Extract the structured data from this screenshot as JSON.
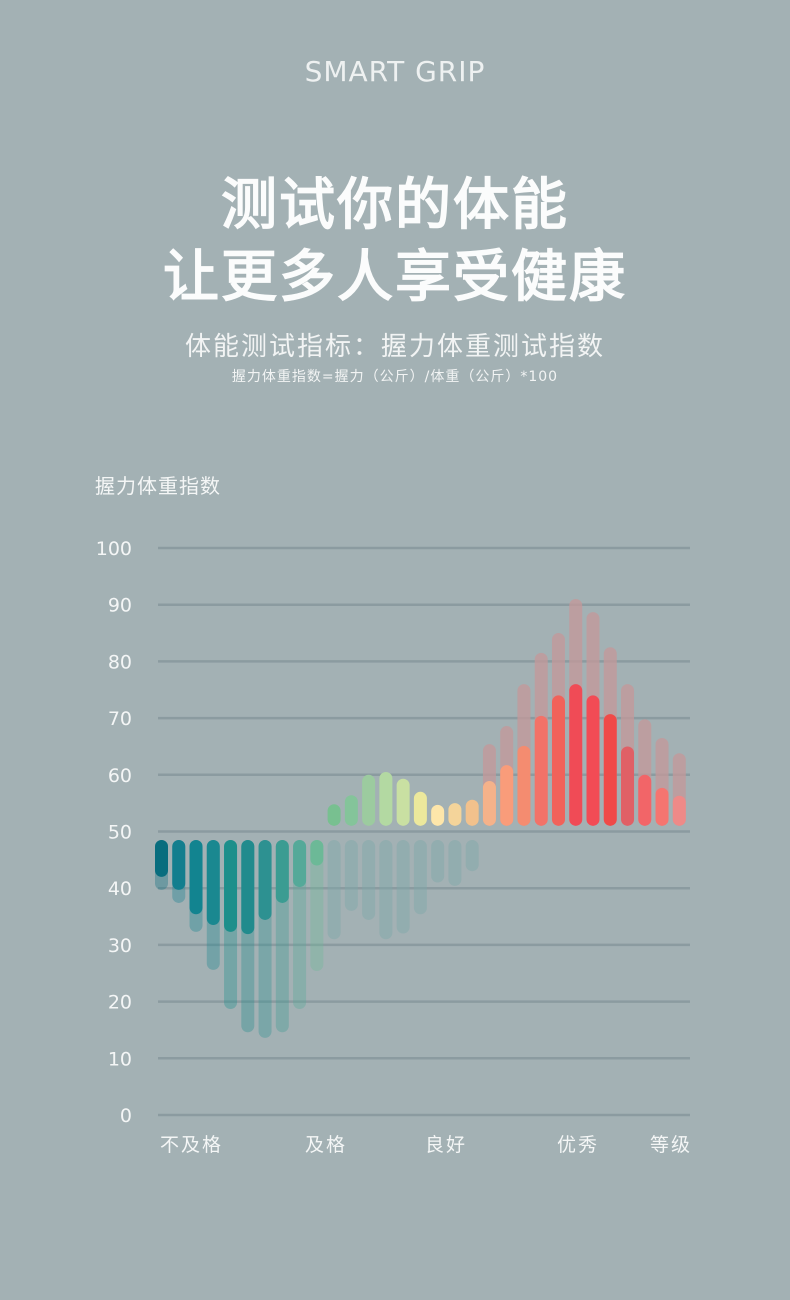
{
  "brand": "SMART GRIP",
  "headline": [
    "测试你的体能",
    "让更多人享受健康"
  ],
  "subtitle": "体能测试指标：握力体重测试指数",
  "formula": "握力体重指数=握力（公斤）/体重（公斤）*100",
  "chart_data": {
    "type": "bar",
    "title": "",
    "ylabel": "握力体重指数",
    "ylim": [
      0,
      100
    ],
    "yticks": [
      "0",
      "10",
      "20",
      "30",
      "40",
      "50",
      "60",
      "70",
      "80",
      "90",
      "100"
    ],
    "grid": true,
    "xcategories": [
      "不及格",
      "及格",
      "良好",
      "优秀",
      "等级"
    ],
    "lower_start": 48.5,
    "upper_start": 51,
    "bars": [
      {
        "low": 42,
        "low_faded": 39.7,
        "high": null,
        "high_faded": null,
        "color": "#086d7e"
      },
      {
        "low": 39.7,
        "low_faded": 37.4,
        "high": null,
        "high_faded": null,
        "color": "#127e8e"
      },
      {
        "low": 35.4,
        "low_faded": 32.3,
        "high": null,
        "high_faded": null,
        "color": "#128490"
      },
      {
        "low": 33.5,
        "low_faded": 25.6,
        "high": null,
        "high_faded": null,
        "color": "#1a8890"
      },
      {
        "low": 32.3,
        "low_faded": 18.7,
        "high": null,
        "high_faded": null,
        "color": "#1d8f8b"
      },
      {
        "low": 31.9,
        "low_faded": 14.6,
        "high": null,
        "high_faded": null,
        "color": "#218b8d"
      },
      {
        "low": 34.4,
        "low_faded": 13.6,
        "high": null,
        "high_faded": null,
        "color": "#2d9191"
      },
      {
        "low": 37.4,
        "low_faded": 14.6,
        "high": null,
        "high_faded": null,
        "color": "#3b9c92"
      },
      {
        "low": 40.2,
        "low_faded": 18.7,
        "high": null,
        "high_faded": null,
        "color": "#55a999"
      },
      {
        "low": 44,
        "low_faded": 25.4,
        "high": null,
        "high_faded": null,
        "color": "#6cb997"
      },
      {
        "low": null,
        "low_faded": 31,
        "high": 54.8,
        "high_faded": null,
        "color": "#78c090"
      },
      {
        "low": null,
        "low_faded": 36,
        "high": 56.4,
        "high_faded": null,
        "color": "#84c49a"
      },
      {
        "low": null,
        "low_faded": 34.4,
        "high": 60,
        "high_faded": null,
        "color": "#9ccb9f"
      },
      {
        "low": null,
        "low_faded": 31,
        "high": 60.5,
        "high_faded": null,
        "color": "#b3d9a2"
      },
      {
        "low": null,
        "low_faded": 32,
        "high": 59.3,
        "high_faded": null,
        "color": "#c9e0a2"
      },
      {
        "low": null,
        "low_faded": 35.4,
        "high": 57,
        "high_faded": null,
        "color": "#ece89c"
      },
      {
        "low": null,
        "low_faded": 41,
        "high": 54.7,
        "high_faded": null,
        "color": "#fde6aa"
      },
      {
        "low": null,
        "low_faded": 40.4,
        "high": 55,
        "high_faded": null,
        "color": "#f4d49a"
      },
      {
        "low": null,
        "low_faded": 43,
        "high": 55.6,
        "high_faded": null,
        "color": "#f2c18c"
      },
      {
        "low": null,
        "low_faded": null,
        "high": 58.9,
        "high_faded": 65.4,
        "color": "#f5b28a"
      },
      {
        "low": null,
        "low_faded": null,
        "high": 61.7,
        "high_faded": 68.6,
        "color": "#f99c7a"
      },
      {
        "low": null,
        "low_faded": null,
        "high": 65.1,
        "high_faded": 76,
        "color": "#f48c70"
      },
      {
        "low": null,
        "low_faded": null,
        "high": 70.4,
        "high_faded": 81.5,
        "color": "#f27268"
      },
      {
        "low": null,
        "low_faded": null,
        "high": 74,
        "high_faded": 85,
        "color": "#f1625a"
      },
      {
        "low": null,
        "low_faded": null,
        "high": 76,
        "high_faded": 91,
        "color": "#f04b56"
      },
      {
        "low": null,
        "low_faded": null,
        "high": 74,
        "high_faded": 88.7,
        "color": "#f24b55"
      },
      {
        "low": null,
        "low_faded": null,
        "high": 70.7,
        "high_faded": 82.5,
        "color": "#f04a48"
      },
      {
        "low": null,
        "low_faded": null,
        "high": 65,
        "high_faded": 76,
        "color": "#e06066"
      },
      {
        "low": null,
        "low_faded": null,
        "high": 60,
        "high_faded": 69.8,
        "color": "#f26568"
      },
      {
        "low": null,
        "low_faded": null,
        "high": 57.7,
        "high_faded": 66.5,
        "color": "#f57570"
      },
      {
        "low": null,
        "low_faded": null,
        "high": 56.3,
        "high_faded": 63.8,
        "color": "#ee8a88"
      }
    ]
  },
  "colors": {
    "background": "#a3b1b4",
    "grid": "#8b9ba0",
    "faded_low": "#7fa8a8",
    "faded_high": "#c4989a"
  }
}
